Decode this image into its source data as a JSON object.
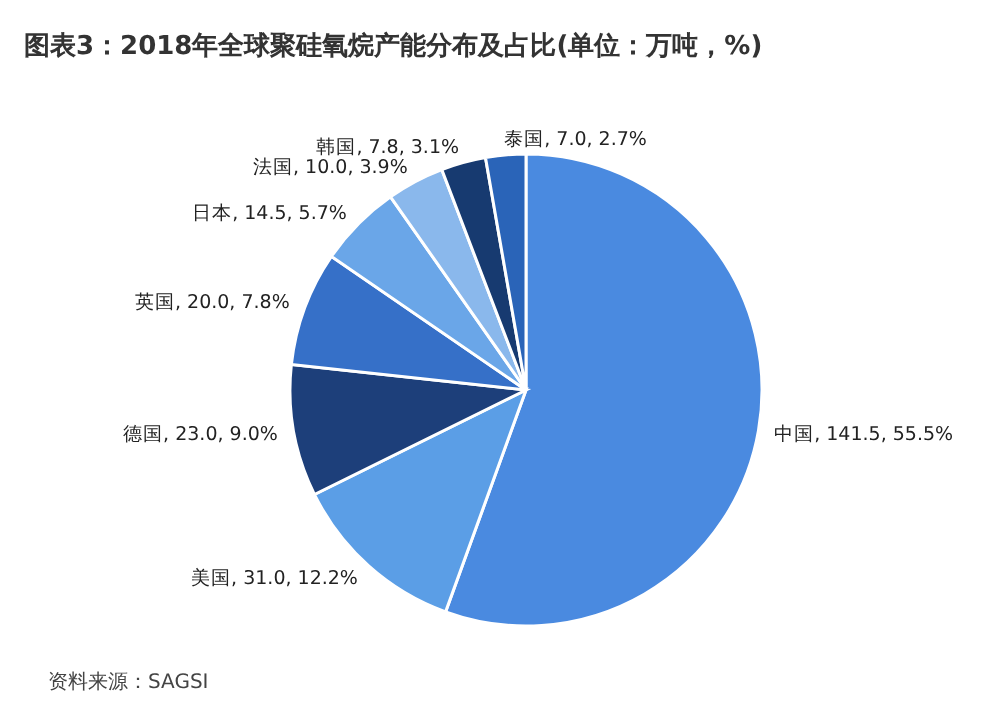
{
  "chart_data": {
    "type": "pie",
    "title": "图表3：2018年全球聚硅氧烷产能分布及占比(单位：万吨，%)",
    "categories": [
      "中国",
      "美国",
      "德国",
      "英国",
      "日本",
      "法国",
      "韩国",
      "泰国"
    ],
    "values": [
      141.5,
      31.0,
      23.0,
      20.0,
      14.5,
      10.0,
      7.8,
      7.0
    ],
    "value_labels": [
      "141.5, 55.5%",
      "31.0, 12.2%",
      "23.0, 9.0%",
      "20.0, 7.8%",
      "14.5, 5.7%",
      "10.0, 3.9%",
      "7.8, 3.1%",
      "7.0, 2.7%"
    ],
    "colors": [
      "#4a8ae0",
      "#5b9ee6",
      "#1d3f7a",
      "#3670c8",
      "#6aa6e8",
      "#8ab8ec",
      "#173a70",
      "#2a64b8"
    ],
    "annotations": [
      "资料来源：SAGSI"
    ],
    "legend": false
  }
}
